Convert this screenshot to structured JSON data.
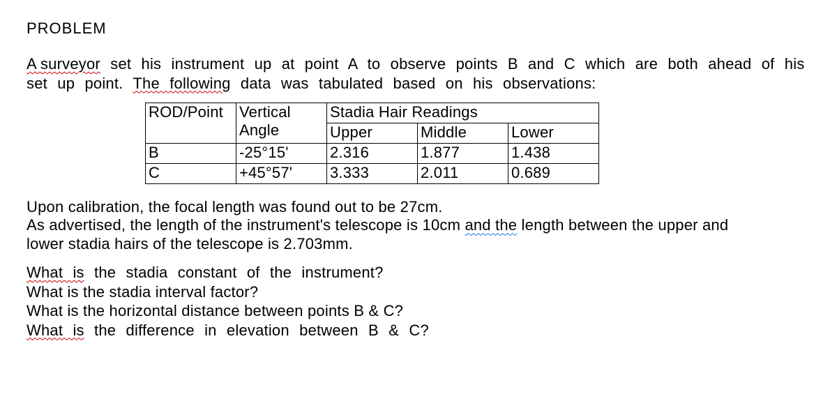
{
  "heading": "PROBLEM",
  "para1": {
    "seg1": "A surveyor",
    "seg2": " set  his  instrument  up  at  point  A  to  observe  points  B  and  C which  are  both  ahead of  his  set  up  point.  ",
    "seg3": "The  following",
    "seg4": "  data  was tabulated  based  on  his  observations:"
  },
  "table": {
    "h1": "ROD/Point",
    "h2a": "Vertical",
    "h2b": "Angle",
    "h3": "Stadia Hair Readings",
    "sh1": "Upper",
    "sh2": "Middle",
    "sh3": "Lower",
    "r1": {
      "c1": "B",
      "c2": "-25°15'",
      "c3": "2.316",
      "c4": "1.877",
      "c5": "1.438"
    },
    "r2": {
      "c1": "C",
      "c2": "+45°57'",
      "c3": "3.333",
      "c4": "2.011",
      "c5": "0.689"
    }
  },
  "para2": {
    "l1": "Upon calibration, the focal length was found out to be 27cm.",
    "l2a": "As advertised, the length of the instrument's telescope is 10cm ",
    "l2b": "and  the",
    "l2c": " length between the upper and",
    "l3": "lower stadia hairs of the telescope  is  2.703mm."
  },
  "q": {
    "q1a": "What  is",
    "q1b": "  the  stadia  constant  of  the  instrument?",
    "q2": "What is the stadia interval factor?",
    "q3": "What is the horizontal distance between points B & C?",
    "q4a": "What  is",
    "q4b": "  the  difference  in  elevation  between  B  &  C?"
  }
}
